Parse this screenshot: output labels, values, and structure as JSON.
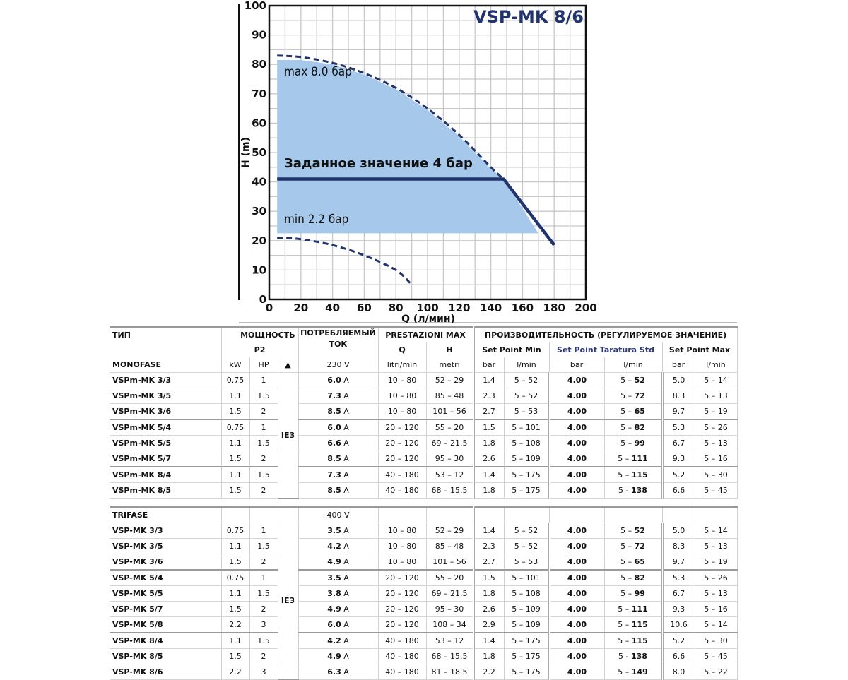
{
  "chart_data": {
    "type": "line",
    "title": "VSP-MK 8/6",
    "xlabel": "Q (л/мин)",
    "ylabel": "H (m)",
    "xlim": [
      0,
      200
    ],
    "ylim": [
      0,
      100
    ],
    "xticks": [
      0,
      20,
      40,
      60,
      80,
      100,
      120,
      140,
      160,
      180,
      200
    ],
    "yticks": [
      0,
      10,
      20,
      30,
      40,
      50,
      60,
      70,
      80,
      90,
      100
    ],
    "grid": true,
    "colors": {
      "curve": "#22346e",
      "fill": "#a6c8ea",
      "grid": "#c8c8c8"
    },
    "series": [
      {
        "name": "max 8.0 бар",
        "style": "dashed",
        "x": [
          5,
          20,
          40,
          60,
          80,
          100,
          120,
          140,
          148
        ],
        "y": [
          83,
          82.5,
          80.5,
          77,
          72,
          65,
          56,
          45,
          41
        ]
      },
      {
        "name": "min 2.2 бар",
        "style": "dashed",
        "x": [
          5,
          20,
          40,
          60,
          80,
          90
        ],
        "y": [
          21,
          20.5,
          18.5,
          15,
          10,
          5
        ]
      },
      {
        "name": "Заданное значение 4 бар",
        "style": "solid",
        "x": [
          5,
          148,
          180
        ],
        "y": [
          41,
          41,
          18.5
        ]
      }
    ],
    "shaded_region": {
      "x": [
        5,
        5,
        20,
        40,
        60,
        80,
        100,
        120,
        140,
        148,
        170
      ],
      "y": [
        22.5,
        81.5,
        81.5,
        80,
        76.5,
        71.5,
        64.5,
        55.5,
        44.5,
        41,
        22.5
      ]
    }
  },
  "table": {
    "headers": {
      "type": "ТИП",
      "power": "МОЩНОСТЬ",
      "p2": "P2",
      "current": "ПОТРЕБЛЯЕМЫЙ ТОК",
      "prest": "PRESTAZIONI MAX",
      "perf": "ПРОИЗВОДИТЕЛЬНОСТЬ (РЕГУЛИРУЕМОЕ ЗНАЧЕНИЕ)",
      "q": "Q",
      "h": "H",
      "sp_min": "Set Point Min",
      "sp_std": "Set Point Taratura Std",
      "sp_max": "Set Point Max",
      "kw": "kW",
      "hp": "HP",
      "eff": "▲",
      "q_unit": "litri/min",
      "h_unit": "metri",
      "bar": "bar",
      "lmin": "l/min"
    },
    "groups": [
      {
        "name": "MONOFASE",
        "voltage": "230 V",
        "efficiency": "IE3",
        "breaks": [
          3,
          6
        ],
        "rows": [
          [
            "VSPm-MK 3/3",
            "0.75",
            "1",
            "6.0 A",
            "10 – 80",
            "52 – 29",
            "1.4",
            "5 – 52",
            "4.00",
            "5 – 52",
            "5.0",
            "5 – 14"
          ],
          [
            "VSPm-MK 3/5",
            "1.1",
            "1.5",
            "7.3 A",
            "10 – 80",
            "85 – 48",
            "2.3",
            "5 – 52",
            "4.00",
            "5 – 72",
            "8.3",
            "5 – 13"
          ],
          [
            "VSPm-MK 3/6",
            "1.5",
            "2",
            "8.5 A",
            "10 – 80",
            "101 – 56",
            "2.7",
            "5 – 53",
            "4.00",
            "5 – 65",
            "9.7",
            "5 – 19"
          ],
          [
            "VSPm-MK 5/4",
            "0.75",
            "1",
            "6.0 A",
            "20 – 120",
            "55 – 20",
            "1.5",
            "5 – 101",
            "4.00",
            "5 – 82",
            "5.3",
            "5 – 26"
          ],
          [
            "VSPm-MK 5/5",
            "1.1",
            "1.5",
            "6.6 A",
            "20 – 120",
            "69 – 21.5",
            "1.8",
            "5 – 108",
            "4.00",
            "5 – 99",
            "6.7",
            "5 – 13"
          ],
          [
            "VSPm-MK 5/7",
            "1.5",
            "2",
            "8.5 A",
            "20 – 120",
            "95 – 30",
            "2.6",
            "5 – 109",
            "4.00",
            "5 – 111",
            "9.3",
            "5 – 16"
          ],
          [
            "VSPm-MK 8/4",
            "1.1",
            "1.5",
            "7.3 A",
            "40 – 180",
            "53 – 12",
            "1.4",
            "5 – 175",
            "4.00",
            "5 – 115",
            "5.2",
            "5 – 30"
          ],
          [
            "VSPm-MK 8/5",
            "1.5",
            "2",
            "8.5 A",
            "40 – 180",
            "68 – 15.5",
            "1.8",
            "5 – 175",
            "4.00",
            "5 - 138",
            "6.6",
            "5 – 45"
          ]
        ]
      },
      {
        "name": "TRIFASE",
        "voltage": "400 V",
        "efficiency": "IE3",
        "breaks": [
          3,
          7
        ],
        "rows": [
          [
            "VSP-MK 3/3",
            "0.75",
            "1",
            "3.5 A",
            "10 – 80",
            "52 – 29",
            "1.4",
            "5 – 52",
            "4.00",
            "5 – 52",
            "5.0",
            "5 – 14"
          ],
          [
            "VSP-MK 3/5",
            "1.1",
            "1.5",
            "4.2 A",
            "10 – 80",
            "85 – 48",
            "2.3",
            "5 – 52",
            "4.00",
            "5 – 72",
            "8.3",
            "5 – 13"
          ],
          [
            "VSP-MK 3/6",
            "1.5",
            "2",
            "4.9 A",
            "10 – 80",
            "101 – 56",
            "2.7",
            "5 – 53",
            "4.00",
            "5 – 65",
            "9.7",
            "5 – 19"
          ],
          [
            "VSP-MK 5/4",
            "0.75",
            "1",
            "3.5 A",
            "20 – 120",
            "55 – 20",
            "1.5",
            "5 – 101",
            "4.00",
            "5 – 82",
            "5.3",
            "5 – 26"
          ],
          [
            "VSP-MK 5/5",
            "1.1",
            "1.5",
            "3.8 A",
            "20 – 120",
            "69 – 21.5",
            "1.8",
            "5 – 108",
            "4.00",
            "5 – 99",
            "6.7",
            "5 – 13"
          ],
          [
            "VSP-MK 5/7",
            "1.5",
            "2",
            "4.9 A",
            "20 – 120",
            "95 – 30",
            "2.6",
            "5 – 109",
            "4.00",
            "5 – 111",
            "9.3",
            "5 – 16"
          ],
          [
            "VSP-MK 5/8",
            "2.2",
            "3",
            "6.0 A",
            "20 – 120",
            "108 – 34",
            "2.9",
            "5 – 109",
            "4.00",
            "5 – 115",
            "10.6",
            "5 – 14"
          ],
          [
            "VSP-MK 8/4",
            "1.1",
            "1.5",
            "4.2 A",
            "40 – 180",
            "53 – 12",
            "1.4",
            "5 – 175",
            "4.00",
            "5 – 115",
            "5.2",
            "5 – 30"
          ],
          [
            "VSP-MK 8/5",
            "1.5",
            "2",
            "4.9 A",
            "40 – 180",
            "68 – 15.5",
            "1.8",
            "5 – 175",
            "4.00",
            "5 - 138",
            "6.6",
            "5 – 45"
          ],
          [
            "VSP-MK 8/6",
            "2.2",
            "3",
            "6.3 A",
            "40 – 180",
            "81 – 18.5",
            "2.2",
            "5 – 175",
            "4.00",
            "5 – 149",
            "8.0",
            "5 – 22"
          ]
        ]
      }
    ]
  }
}
